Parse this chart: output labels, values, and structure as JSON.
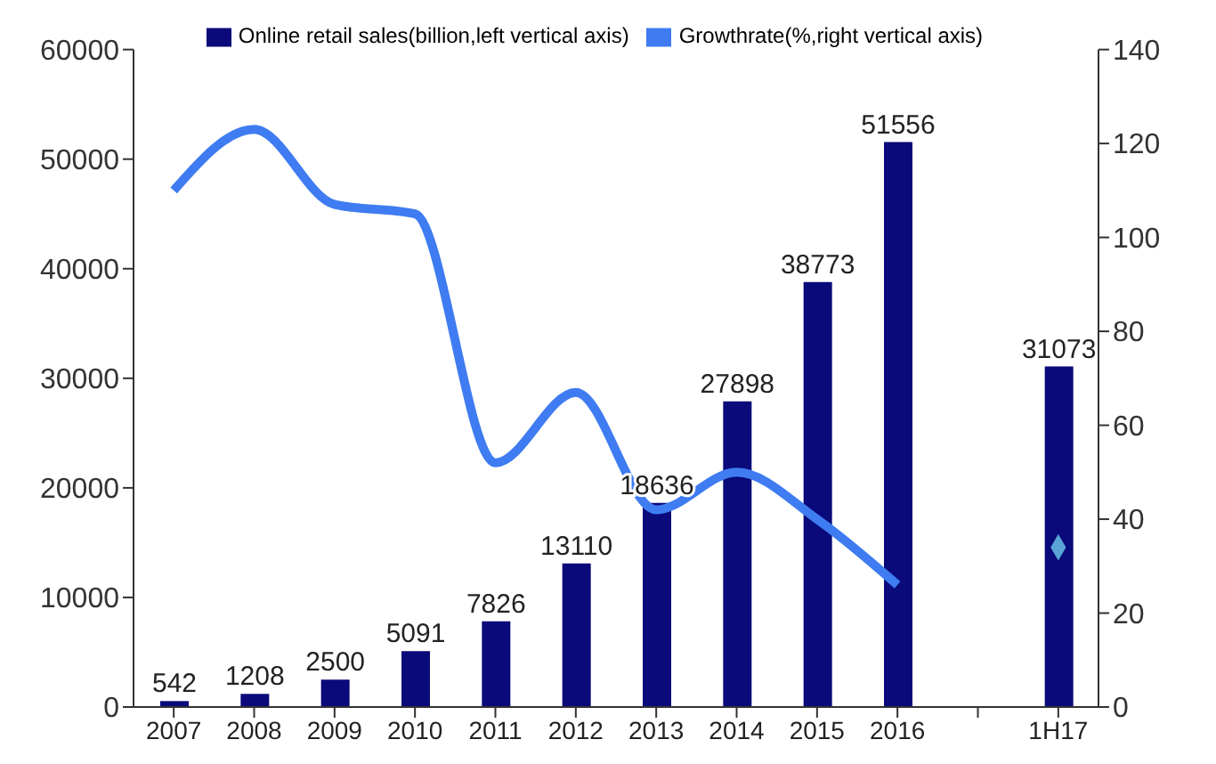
{
  "chart_data": {
    "type": "bar",
    "categories": [
      "2007",
      "2008",
      "2009",
      "2010",
      "2011",
      "2012",
      "2013",
      "2014",
      "2015",
      "2016",
      null,
      "1H17"
    ],
    "series": [
      {
        "name": "Online retail sales(billion,left vertical axis)",
        "color": "#0a0a7a",
        "values": [
          542,
          1208,
          2500,
          5091,
          7826,
          13110,
          18636,
          27898,
          38773,
          51556,
          null,
          31073
        ],
        "value_labels": [
          "542",
          "1208",
          "2500",
          "5091",
          "7826",
          "13110",
          "18636",
          "27898",
          "38773",
          "51556",
          null,
          "31073"
        ]
      },
      {
        "name": "Growthrate(%,right vertical axis)",
        "type": "line",
        "axis": "y2",
        "color": "#3f7cf2",
        "marker": "none",
        "values": [
          110,
          123,
          107,
          105,
          52,
          67,
          42,
          50,
          40,
          26,
          null,
          null
        ]
      },
      {
        "type": "scatter",
        "axis": "y2",
        "color": "#5aa5d6",
        "marker": "diamond",
        "values": [
          null,
          null,
          null,
          null,
          null,
          null,
          null,
          null,
          null,
          null,
          null,
          34
        ]
      }
    ],
    "ylim": [
      0,
      60000
    ],
    "yticks": [
      0,
      10000,
      20000,
      30000,
      40000,
      50000,
      60000
    ],
    "y2lim": [
      0,
      140
    ],
    "y2ticks": [
      0,
      20,
      40,
      60,
      80,
      100,
      120,
      140
    ],
    "grid": false,
    "legend": "top"
  }
}
